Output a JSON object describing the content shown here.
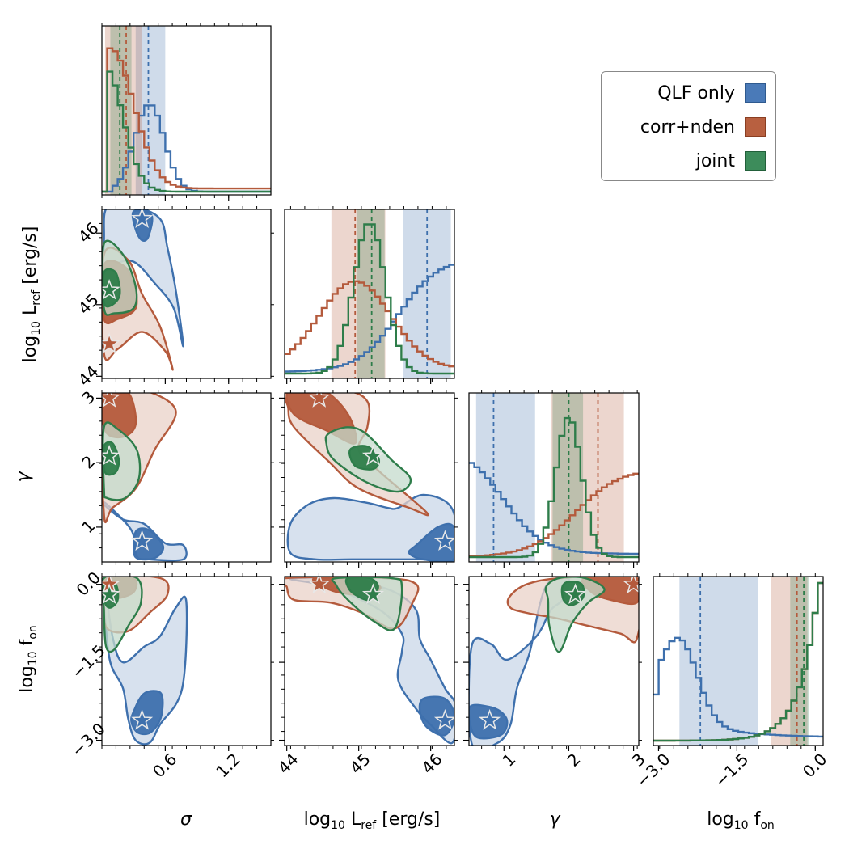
{
  "chart_data": {
    "type": "corner",
    "parameters": [
      {
        "key": "sigma",
        "label_html": "σ",
        "range": [
          0.0,
          1.6
        ],
        "ticks": [
          0.6,
          1.2
        ],
        "tick_labels": [
          "0.6",
          "1.2"
        ]
      },
      {
        "key": "logL",
        "label_html": "log<tspan font-size='14' dy='5'>10</tspan><tspan dy='-5'> L</tspan><tspan font-size='14' dy='5'>ref</tspan><tspan dy='-5'> [erg/s]</tspan>",
        "range": [
          43.97,
          46.33
        ],
        "ticks": [
          44,
          45,
          46
        ],
        "tick_labels": [
          "44",
          "45",
          "46"
        ]
      },
      {
        "key": "gamma",
        "label_html": "γ",
        "range": [
          0.46,
          3.08
        ],
        "ticks": [
          1,
          2,
          3
        ],
        "tick_labels": [
          "1",
          "2",
          "3"
        ]
      },
      {
        "key": "logfon",
        "label_html": "log<tspan font-size='14' dy='5'>10</tspan><tspan dy='-5'> f</tspan><tspan font-size='14' dy='5'>on</tspan>",
        "range": [
          -3.1,
          0.15
        ],
        "ticks": [
          -3.0,
          -1.5,
          0.0
        ],
        "tick_labels": [
          "−3.0",
          "−1.5",
          "0.0"
        ]
      }
    ],
    "series": [
      {
        "name": "QLF only",
        "color": "#3e70ad",
        "best": [
          0.38,
          46.2,
          0.78,
          -2.62
        ],
        "median": [
          0.44,
          45.95,
          0.84,
          -2.2
        ],
        "ci_low": [
          0.32,
          45.62,
          0.57,
          -2.6
        ],
        "ci_high": [
          0.6,
          46.28,
          1.48,
          -1.1
        ]
      },
      {
        "name": "corr+nden",
        "color": "#b45a3c",
        "best": [
          0.07,
          44.45,
          3.0,
          0.0
        ],
        "median": [
          0.23,
          44.95,
          2.45,
          -0.35
        ],
        "ci_low": [
          0.03,
          44.62,
          1.72,
          -0.85
        ],
        "ci_high": [
          0.38,
          45.37,
          2.85,
          -0.15
        ]
      },
      {
        "name": "joint",
        "color": "#2e7d4a",
        "best": [
          0.07,
          45.2,
          2.1,
          -0.2
        ],
        "median": [
          0.17,
          45.18,
          2.0,
          -0.22
        ],
        "ci_low": [
          0.08,
          44.98,
          1.75,
          -0.48
        ],
        "ci_high": [
          0.28,
          45.36,
          2.22,
          -0.12
        ]
      }
    ],
    "legend": {
      "placement": "top-right"
    }
  }
}
